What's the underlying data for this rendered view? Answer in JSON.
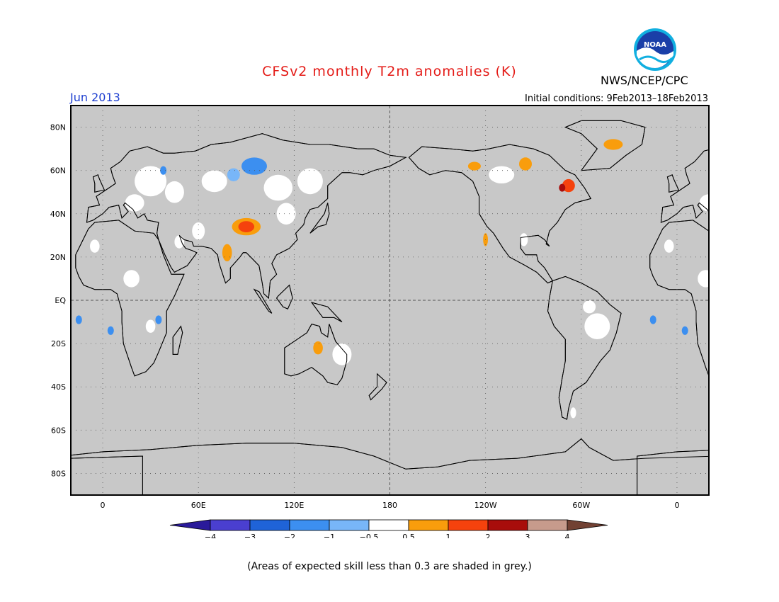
{
  "title": "CFSv2 monthly T2m anomalies (K)",
  "valid_month": "Jun 2013",
  "organization": "NWS/NCEP/CPC",
  "initial_conditions": "Initial conditions: 9Feb2013–18Feb2013",
  "logo_text": "NOAA",
  "footnote": "(Areas of expected skill less than 0.3 are shaded in grey.)",
  "map": {
    "lat_labels": [
      "80N",
      "60N",
      "40N",
      "20N",
      "EQ",
      "20S",
      "40S",
      "60S",
      "80S"
    ],
    "lat_values": [
      80,
      60,
      40,
      20,
      0,
      -20,
      -40,
      -60,
      -80
    ],
    "lon_labels": [
      "0",
      "60E",
      "120E",
      "180",
      "120W",
      "60W",
      "0"
    ],
    "lon_values": [
      0,
      60,
      120,
      180,
      240,
      300,
      360
    ],
    "lon_range": [
      -20,
      380
    ],
    "lat_range": [
      -90,
      90
    ],
    "ocean_color": "#c8c8c8"
  },
  "legend": {
    "labels": [
      "−4",
      "−3",
      "−2",
      "−1",
      "−0.5",
      "0.5",
      "1",
      "2",
      "3",
      "4"
    ],
    "colors": [
      "#2a1a9a",
      "#4a3fd0",
      "#1f63d8",
      "#3c8ff0",
      "#78b6f8",
      "#ffffff",
      "#f99d0c",
      "#f5420d",
      "#a80d0b",
      "#c79b8c",
      "#714133"
    ]
  }
}
